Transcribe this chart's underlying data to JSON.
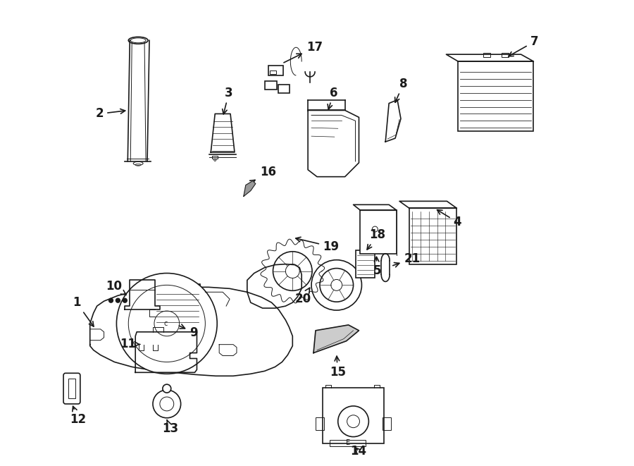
{
  "background_color": "#ffffff",
  "line_color": "#1a1a1a",
  "fig_width": 9.0,
  "fig_height": 6.61,
  "dpi": 100
}
